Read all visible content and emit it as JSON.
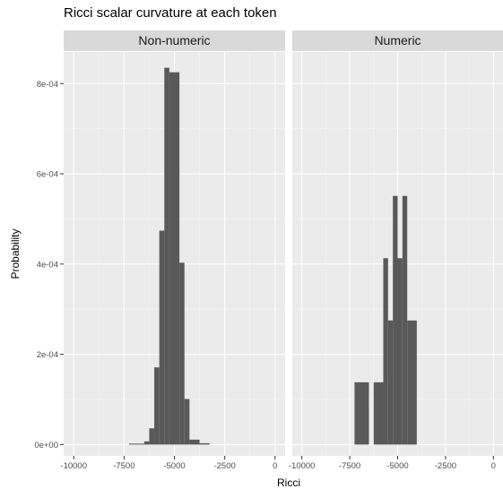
{
  "chart_data": {
    "type": "bar",
    "title": "Ricci scalar curvature at each token",
    "xlabel": "Ricci",
    "ylabel": "Probability",
    "xlim": [
      -10500,
      500
    ],
    "ylim": [
      -2.5e-05,
      0.00087
    ],
    "x_ticks": [
      -10000,
      -7500,
      -5000,
      -2500,
      0
    ],
    "x_tick_labels": [
      "-10000",
      "-7500",
      "-5000",
      "-2500",
      "0"
    ],
    "y_ticks": [
      0,
      0.0002,
      0.0004,
      0.0006,
      0.0008
    ],
    "y_tick_labels": [
      "0e+00",
      "2e-04",
      "4e-04",
      "6e-04",
      "8e-04"
    ],
    "grid": true,
    "panel_background": "#ebebeb",
    "strip_background": "#d9d9d9",
    "bar_color": "#595959",
    "panels": [
      {
        "name": "Non-numeric",
        "bins": [
          {
            "x0": -7250,
            "x1": -6750,
            "value": 2e-06
          },
          {
            "x0": -6750,
            "x1": -6500,
            "value": 2e-06
          },
          {
            "x0": -6500,
            "x1": -6250,
            "value": 7e-06
          },
          {
            "x0": -6250,
            "x1": -6000,
            "value": 3.6e-05
          },
          {
            "x0": -6000,
            "x1": -5750,
            "value": 0.000171
          },
          {
            "x0": -5750,
            "x1": -5500,
            "value": 0.000474
          },
          {
            "x0": -5500,
            "x1": -5250,
            "value": 0.000835
          },
          {
            "x0": -5250,
            "x1": -4750,
            "value": 0.000825
          },
          {
            "x0": -4750,
            "x1": -4500,
            "value": 0.000403
          },
          {
            "x0": -4500,
            "x1": -4250,
            "value": 0.000101
          },
          {
            "x0": -4250,
            "x1": -3750,
            "value": 1.1e-05
          },
          {
            "x0": -3750,
            "x1": -3250,
            "value": 3e-06
          }
        ]
      },
      {
        "name": "Numeric",
        "bins": [
          {
            "x0": -7250,
            "x1": -6500,
            "value": 0.000138
          },
          {
            "x0": -6250,
            "x1": -5750,
            "value": 0.000138
          },
          {
            "x0": -5750,
            "x1": -5500,
            "value": 0.000413
          },
          {
            "x0": -5500,
            "x1": -5250,
            "value": 0.000275
          },
          {
            "x0": -5250,
            "x1": -5000,
            "value": 0.000551
          },
          {
            "x0": -5000,
            "x1": -4750,
            "value": 0.000413
          },
          {
            "x0": -4750,
            "x1": -4500,
            "value": 0.000551
          },
          {
            "x0": -4500,
            "x1": -4000,
            "value": 0.000275
          }
        ]
      }
    ]
  }
}
